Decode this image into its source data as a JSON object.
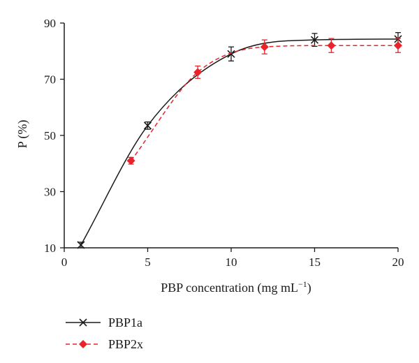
{
  "chart_data": {
    "type": "line",
    "xlabel": "PBP concentration (mg mL",
    "xlabel_sup": "−1",
    "xlabel_close": ")",
    "ylabel": "P (%)",
    "xlim": [
      0,
      20
    ],
    "ylim": [
      10,
      90
    ],
    "xticks": [
      0,
      5,
      10,
      15,
      20
    ],
    "yticks": [
      10,
      30,
      50,
      70,
      90
    ],
    "grid": false,
    "legend_position": "bottom-left",
    "series": [
      {
        "name": "PBP1a",
        "color": "#1a1a1a",
        "marker": "x",
        "line_style": "solid",
        "x": [
          1,
          5,
          10,
          15,
          20
        ],
        "y": [
          11,
          53.5,
          79,
          84,
          84.3
        ],
        "err": [
          1,
          1.3,
          2.5,
          2.3,
          2.3
        ]
      },
      {
        "name": "PBP2x",
        "color": "#e8232b",
        "marker": "diamond",
        "line_style": "dashed",
        "x": [
          4,
          8,
          12,
          16,
          20
        ],
        "y": [
          41,
          72.5,
          81.5,
          82,
          82
        ],
        "err": [
          1.2,
          2.2,
          2.5,
          2.5,
          2.5
        ]
      }
    ]
  }
}
